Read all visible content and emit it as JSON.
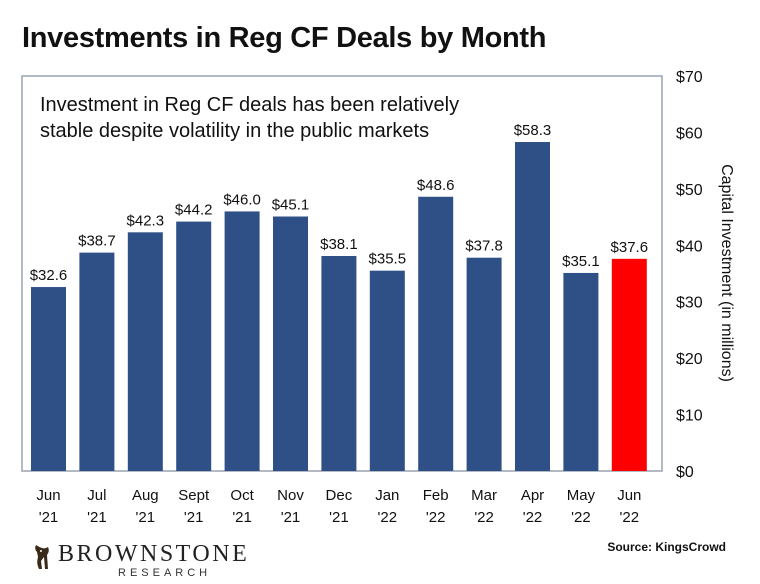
{
  "chart_data": {
    "type": "bar",
    "title": "Investments in Reg CF Deals by Month",
    "annotation_lines": [
      "Investment in Reg CF deals has been relatively",
      "stable despite volatility in the public markets"
    ],
    "ylabel": "Capital Investment (in millions)",
    "ylim": [
      0,
      70
    ],
    "yticks": [
      "$0",
      "$10",
      "$20",
      "$30",
      "$40",
      "$50",
      "$60",
      "$70"
    ],
    "categories": [
      [
        "Jun",
        "'21"
      ],
      [
        "Jul",
        "'21"
      ],
      [
        "Aug",
        "'21"
      ],
      [
        "Sept",
        "'21"
      ],
      [
        "Oct",
        "'21"
      ],
      [
        "Nov",
        "'21"
      ],
      [
        "Dec",
        "'21"
      ],
      [
        "Jan",
        "'22"
      ],
      [
        "Feb",
        "'22"
      ],
      [
        "Mar",
        "'22"
      ],
      [
        "Apr",
        "'22"
      ],
      [
        "May",
        "'22"
      ],
      [
        "Jun",
        "'22"
      ]
    ],
    "values": [
      32.6,
      38.7,
      42.3,
      44.2,
      46.0,
      45.1,
      38.1,
      35.5,
      48.6,
      37.8,
      58.3,
      35.1,
      37.6
    ],
    "value_labels": [
      "$32.6",
      "$38.7",
      "$42.3",
      "$44.2",
      "$46.0",
      "$45.1",
      "$38.1",
      "$35.5",
      "$48.6",
      "$37.8",
      "$58.3",
      "$35.1",
      "$37.6"
    ],
    "colors": {
      "bar": "#2e5086",
      "highlight_bar": "#ff0000",
      "frame": "#9aa3b0"
    },
    "highlight_index": 12,
    "grid": false
  },
  "source": "Source: KingsCrowd",
  "logo": {
    "name": "BROWNSTONE",
    "sub": "RESEARCH",
    "icon": "bull-logo-icon"
  }
}
